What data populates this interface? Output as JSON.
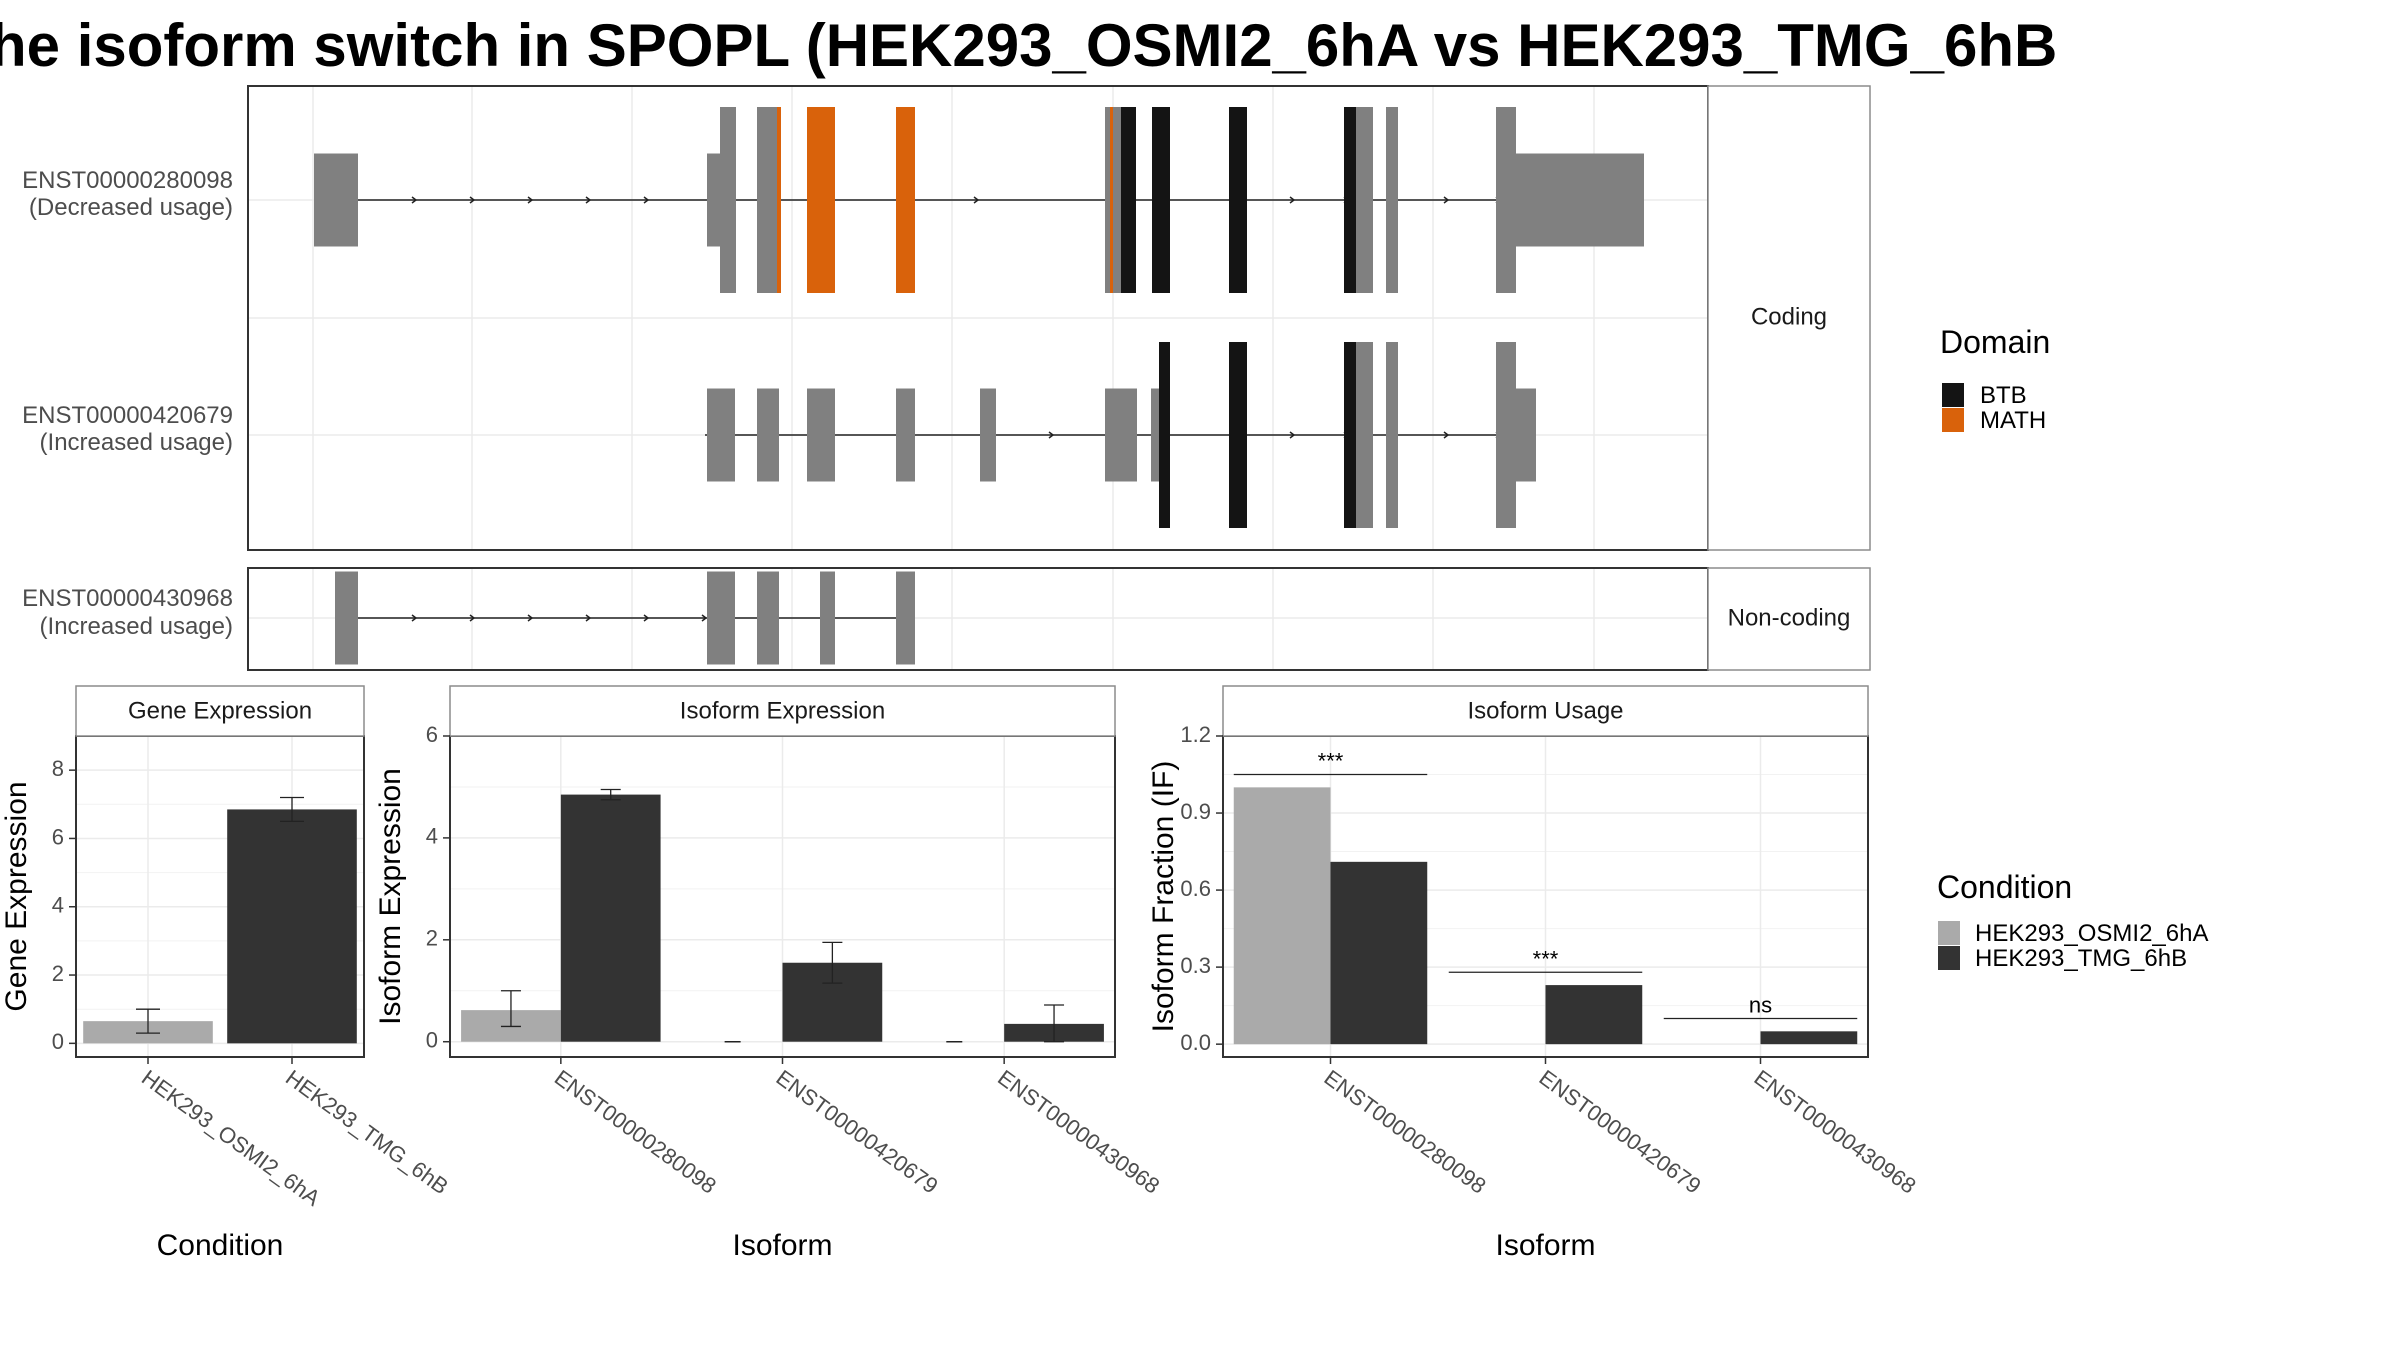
{
  "title": "he isoform switch in SPOPL (HEK293_OSMI2_6hA vs HEK293_TMG_6hB",
  "colors": {
    "exon": "#808080",
    "BTB": "#141414",
    "MATH": "#d9620b",
    "cond_A": "#aaaaaa",
    "cond_B": "#333333",
    "grid": "#ebebeb",
    "strip_bg": "#ffffff",
    "strip_border": "#8c8c8c"
  },
  "structure": {
    "facets": [
      {
        "label": "Coding",
        "isoforms": [
          "iso1",
          "iso2"
        ]
      },
      {
        "label": "Non-coding",
        "isoforms": [
          "iso3"
        ]
      }
    ],
    "isoforms": {
      "iso1": {
        "id": "ENST00000280098",
        "usage": "(Decreased usage)"
      },
      "iso2": {
        "id": "ENST00000420679",
        "usage": "(Increased usage)"
      },
      "iso3": {
        "id": "ENST00000430968",
        "usage": "(Increased usage)"
      }
    },
    "legend": {
      "title": "Domain",
      "entries": [
        "BTB",
        "MATH"
      ]
    }
  },
  "chart_data": [
    {
      "type": "bar",
      "title": "Gene Expression",
      "xlabel": "Condition",
      "ylabel": "Gene Expression",
      "categories": [
        "HEK293_OSMI2_6hA",
        "HEK293_TMG_6hB"
      ],
      "values": [
        0.65,
        6.85
      ],
      "error_low": [
        0.3,
        6.5
      ],
      "error_high": [
        1.0,
        7.2
      ],
      "ylim": [
        -0.4,
        9.0
      ],
      "yticks": [
        0,
        2,
        4,
        6,
        8
      ],
      "ytick_labels": [
        "0",
        "2",
        "4",
        "6",
        "8"
      ]
    },
    {
      "type": "bar",
      "title": "Isoform Expression",
      "xlabel": "Isoform",
      "ylabel": "Isoform Expression",
      "categories": [
        "ENST00000280098",
        "ENST00000420679",
        "ENST00000430968"
      ],
      "series": [
        {
          "name": "HEK293_OSMI2_6hA",
          "values": [
            0.62,
            0.0,
            0.0
          ],
          "error_low": [
            0.3,
            0.0,
            0.0
          ],
          "error_high": [
            1.0,
            0.0,
            0.0
          ]
        },
        {
          "name": "HEK293_TMG_6hB",
          "values": [
            4.85,
            1.55,
            0.35
          ],
          "error_low": [
            4.75,
            1.15,
            0.0
          ],
          "error_high": [
            4.95,
            1.95,
            0.72
          ]
        }
      ],
      "ylim": [
        -0.3,
        6.0
      ],
      "yticks": [
        0,
        2,
        4,
        6
      ],
      "ytick_labels": [
        "0",
        "2",
        "4",
        "6"
      ]
    },
    {
      "type": "bar",
      "title": "Isoform Usage",
      "xlabel": "Isoform",
      "ylabel": "Isoform Fraction (IF)",
      "categories": [
        "ENST00000280098",
        "ENST00000420679",
        "ENST00000430968"
      ],
      "series": [
        {
          "name": "HEK293_OSMI2_6hA",
          "values": [
            1.0,
            0.0,
            0.0
          ]
        },
        {
          "name": "HEK293_TMG_6hB",
          "values": [
            0.71,
            0.23,
            0.05
          ]
        }
      ],
      "significance": [
        "***",
        "***",
        "ns"
      ],
      "significance_y": [
        1.05,
        0.28,
        0.1
      ],
      "ylim": [
        -0.05,
        1.2
      ],
      "yticks": [
        0.0,
        0.3,
        0.6,
        0.9,
        1.2
      ],
      "ytick_labels": [
        "0.0",
        "0.3",
        "0.6",
        "0.9",
        "1.2"
      ],
      "legend": {
        "title": "Condition",
        "entries": [
          "HEK293_OSMI2_6hA",
          "HEK293_TMG_6hB"
        ]
      }
    }
  ]
}
